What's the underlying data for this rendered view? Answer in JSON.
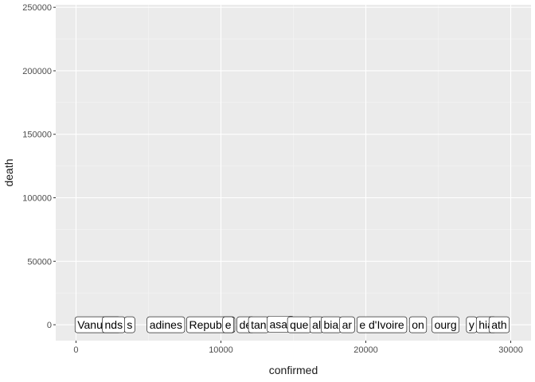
{
  "chart_data": {
    "type": "scatter",
    "geom": "label",
    "title": "",
    "xlabel": "confirmed",
    "ylabel": "death",
    "xlim": [
      -1400,
      31400
    ],
    "ylim": [
      -12500,
      252000
    ],
    "x_ticks": [
      0,
      10000,
      20000,
      30000
    ],
    "x_tick_labels": [
      "0",
      "10000",
      "20000",
      "30000"
    ],
    "y_ticks": [
      0,
      50000,
      100000,
      150000,
      200000,
      250000
    ],
    "y_tick_labels": [
      "0",
      "50000",
      "100000",
      "150000",
      "200000",
      "250000"
    ],
    "grid": true,
    "legend": "none",
    "colors": {
      "panel": "#ebebeb",
      "grid_major": "#ffffff",
      "grid_minor": "#f5f5f5",
      "label_fill": "#ffffff",
      "label_border": "#000000"
    },
    "points": [
      {
        "label": "Vanuatu",
        "x": 1500,
        "y": 0
      },
      {
        "label": "nds",
        "x": 2600,
        "y": 0
      },
      {
        "label": "s",
        "x": 3700,
        "y": 0
      },
      {
        "label": "adines",
        "x": 6200,
        "y": 0
      },
      {
        "label": "Republic",
        "x": 9300,
        "y": 0
      },
      {
        "label": "e",
        "x": 10500,
        "y": 0
      },
      {
        "label": "de",
        "x": 11700,
        "y": 0
      },
      {
        "label": "tan",
        "x": 12600,
        "y": 0
      },
      {
        "label": "asa)",
        "x": 14100,
        "y": 500
      },
      {
        "label": "que",
        "x": 15400,
        "y": 0
      },
      {
        "label": "al",
        "x": 16600,
        "y": 0
      },
      {
        "label": "bia",
        "x": 17600,
        "y": 0
      },
      {
        "label": "ar",
        "x": 18700,
        "y": 0
      },
      {
        "label": "e d'Ivoire",
        "x": 21100,
        "y": 0
      },
      {
        "label": "on",
        "x": 23600,
        "y": 0
      },
      {
        "label": "ourg",
        "x": 25500,
        "y": 0
      },
      {
        "label": "y",
        "x": 27300,
        "y": 0
      },
      {
        "label": "hia",
        "x": 28300,
        "y": 0
      },
      {
        "label": "ath",
        "x": 29200,
        "y": 0
      }
    ]
  }
}
